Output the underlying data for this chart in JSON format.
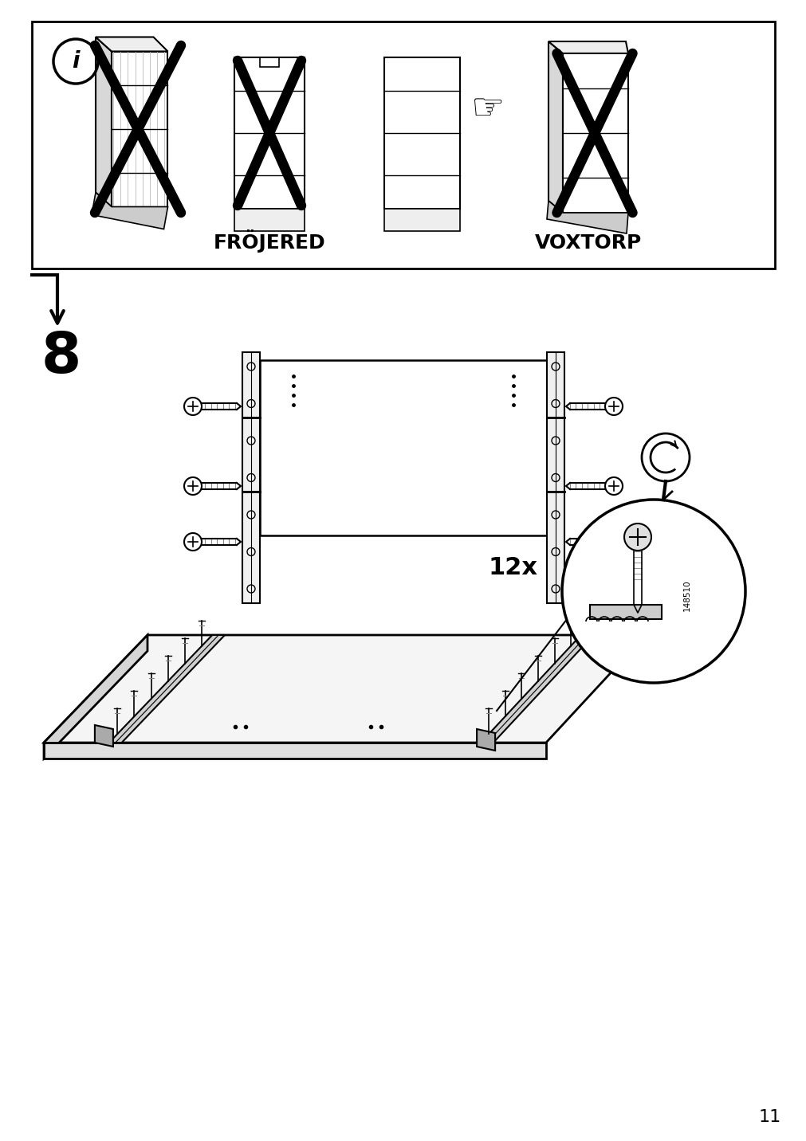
{
  "page_number": "11",
  "background_color": "#ffffff",
  "line_color": "#000000",
  "step_number": "8",
  "labels": {
    "frojered": "FRÖJERED",
    "voxtorp": "VOXTORP",
    "quantity": "12x",
    "part_number": "148510"
  }
}
